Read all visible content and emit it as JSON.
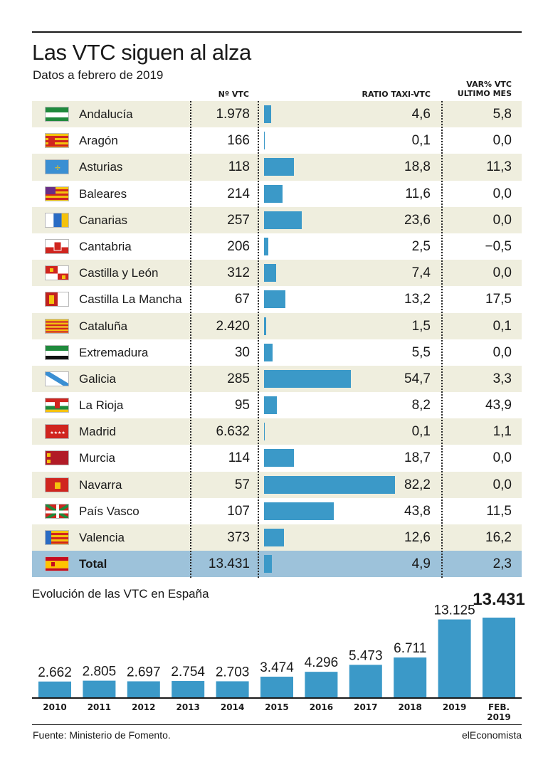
{
  "title": "Las VTC siguen al alza",
  "subtitle": "Datos a febrero de 2019",
  "table": {
    "headers": {
      "vtc": "Nº VTC",
      "ratio": "RATIO TAXI-VTC",
      "var_line1": "VAR% VTC",
      "var_line2": "ULTIMO MES"
    },
    "ratio_max": 82.2,
    "rows": [
      {
        "region": "Andalucía",
        "flag": "andalucia-flag-icon",
        "vtc": "1.978",
        "ratio_value": 4.6,
        "ratio": "4,6",
        "var": "5,8"
      },
      {
        "region": "Aragón",
        "flag": "aragon-flag-icon",
        "vtc": "166",
        "ratio_value": 0.1,
        "ratio": "0,1",
        "var": "0,0"
      },
      {
        "region": "Asturias",
        "flag": "asturias-flag-icon",
        "vtc": "118",
        "ratio_value": 18.8,
        "ratio": "18,8",
        "var": "11,3"
      },
      {
        "region": "Baleares",
        "flag": "baleares-flag-icon",
        "vtc": "214",
        "ratio_value": 11.6,
        "ratio": "11,6",
        "var": "0,0"
      },
      {
        "region": "Canarias",
        "flag": "canarias-flag-icon",
        "vtc": "257",
        "ratio_value": 23.6,
        "ratio": "23,6",
        "var": "0,0"
      },
      {
        "region": "Cantabria",
        "flag": "cantabria-flag-icon",
        "vtc": "206",
        "ratio_value": 2.5,
        "ratio": "2,5",
        "var": "−0,5"
      },
      {
        "region": "Castilla y León",
        "flag": "castilla-leon-flag-icon",
        "vtc": "312",
        "ratio_value": 7.4,
        "ratio": "7,4",
        "var": "0,0"
      },
      {
        "region": "Castilla La Mancha",
        "flag": "castilla-la-mancha-flag-icon",
        "vtc": "67",
        "ratio_value": 13.2,
        "ratio": "13,2",
        "var": "17,5"
      },
      {
        "region": "Cataluña",
        "flag": "cataluna-flag-icon",
        "vtc": "2.420",
        "ratio_value": 1.5,
        "ratio": "1,5",
        "var": "0,1"
      },
      {
        "region": "Extremadura",
        "flag": "extremadura-flag-icon",
        "vtc": "30",
        "ratio_value": 5.5,
        "ratio": "5,5",
        "var": "0,0"
      },
      {
        "region": "Galicia",
        "flag": "galicia-flag-icon",
        "vtc": "285",
        "ratio_value": 54.7,
        "ratio": "54,7",
        "var": "3,3"
      },
      {
        "region": "La Rioja",
        "flag": "la-rioja-flag-icon",
        "vtc": "95",
        "ratio_value": 8.2,
        "ratio": "8,2",
        "var": "43,9"
      },
      {
        "region": "Madrid",
        "flag": "madrid-flag-icon",
        "vtc": "6.632",
        "ratio_value": 0.1,
        "ratio": "0,1",
        "var": "1,1"
      },
      {
        "region": "Murcia",
        "flag": "murcia-flag-icon",
        "vtc": "114",
        "ratio_value": 18.7,
        "ratio": "18,7",
        "var": "0,0"
      },
      {
        "region": "Navarra",
        "flag": "navarra-flag-icon",
        "vtc": "57",
        "ratio_value": 82.2,
        "ratio": "82,2",
        "var": "0,0"
      },
      {
        "region": "País Vasco",
        "flag": "pais-vasco-flag-icon",
        "vtc": "107",
        "ratio_value": 43.8,
        "ratio": "43,8",
        "var": "11,5"
      },
      {
        "region": "Valencia",
        "flag": "valencia-flag-icon",
        "vtc": "373",
        "ratio_value": 12.6,
        "ratio": "12,6",
        "var": "16,2"
      },
      {
        "region": "Total",
        "flag": "espana-flag-icon",
        "vtc": "13.431",
        "ratio_value": 4.9,
        "ratio": "4,9",
        "var": "2,3",
        "total": true
      }
    ]
  },
  "evolution_title": "Evolución de las VTC en España",
  "chart_data": {
    "type": "bar",
    "title": "Evolución de las VTC en España",
    "categories": [
      "2010",
      "2011",
      "2012",
      "2013",
      "2014",
      "2015",
      "2016",
      "2017",
      "2018",
      "2019",
      "FEB. 2019"
    ],
    "values": [
      2662,
      2805,
      2697,
      2754,
      2703,
      3474,
      4296,
      5473,
      6711,
      13125,
      13431
    ],
    "value_labels": [
      "2.662",
      "2.805",
      "2.697",
      "2.754",
      "2.703",
      "3.474",
      "4.296",
      "5.473",
      "6.711",
      "13.125",
      "13.431"
    ],
    "tick_labels": [
      [
        "2010"
      ],
      [
        "2011"
      ],
      [
        "2012"
      ],
      [
        "2013"
      ],
      [
        "2014"
      ],
      [
        "2015"
      ],
      [
        "2016"
      ],
      [
        "2017"
      ],
      [
        "2018"
      ],
      [
        "2019"
      ],
      [
        "FEB.",
        "2019"
      ]
    ],
    "ylim": [
      0,
      13431
    ],
    "grid": false,
    "bar_color": "#3b99c8"
  },
  "footer": {
    "source": "Fuente: Ministerio de Fomento.",
    "brand": "elEconomista"
  },
  "colors": {
    "bar": "#3b99c8",
    "row_shade": "#efeede",
    "total_row": "#9dc2da",
    "text": "#1a1a1a"
  }
}
